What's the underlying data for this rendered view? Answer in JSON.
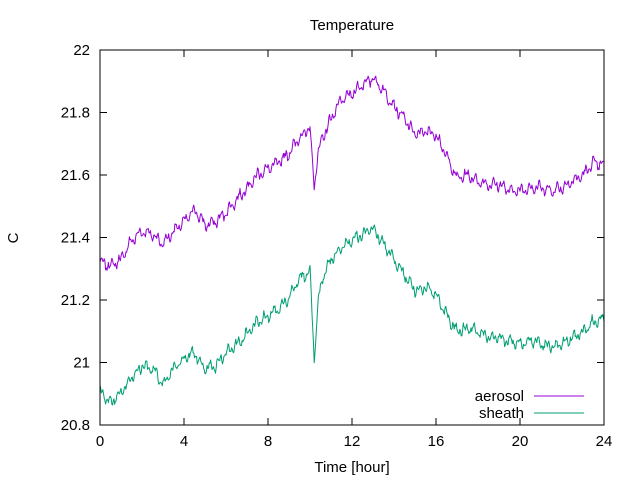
{
  "chart_data": {
    "type": "line",
    "title": "Temperature",
    "xlabel": "Time [hour]",
    "ylabel": "C",
    "xlim": [
      0,
      24
    ],
    "ylim": [
      20.8,
      22.0
    ],
    "x_ticks": [
      0,
      4,
      8,
      12,
      16,
      20,
      24
    ],
    "y_ticks": [
      20.8,
      21.0,
      21.2,
      21.4,
      21.6,
      21.8,
      22.0
    ],
    "y_tick_labels": [
      "20.8",
      "21",
      "21.2",
      "21.4",
      "21.6",
      "21.8",
      "22"
    ],
    "grid": false,
    "legend_position": "bottom-right",
    "series": [
      {
        "name": "aerosol",
        "color": "#9400d3",
        "x": [
          0,
          0.5,
          1,
          1.5,
          2,
          2.5,
          3,
          3.5,
          4,
          4.5,
          5,
          5.5,
          6,
          6.5,
          7,
          7.5,
          8,
          8.5,
          9,
          9.5,
          10,
          10.2,
          10.4,
          10.6,
          11,
          11.5,
          12,
          12.5,
          13,
          13.5,
          14,
          14.5,
          15,
          15.5,
          16,
          16.5,
          17,
          17.5,
          18,
          18.5,
          19,
          19.5,
          20,
          20.5,
          21,
          21.5,
          22,
          22.5,
          23,
          23.5,
          24
        ],
        "y": [
          21.32,
          21.31,
          21.33,
          21.39,
          21.42,
          21.41,
          21.38,
          21.42,
          21.45,
          21.49,
          21.44,
          21.45,
          21.48,
          21.52,
          21.56,
          21.6,
          21.62,
          21.64,
          21.67,
          21.72,
          21.75,
          21.56,
          21.68,
          21.72,
          21.78,
          21.84,
          21.86,
          21.89,
          21.91,
          21.87,
          21.82,
          21.78,
          21.73,
          21.74,
          21.73,
          21.66,
          21.59,
          21.6,
          21.58,
          21.57,
          21.57,
          21.55,
          21.55,
          21.56,
          21.56,
          21.55,
          21.56,
          21.58,
          21.6,
          21.64,
          21.63
        ]
      },
      {
        "name": "sheath",
        "color": "#009e73",
        "x": [
          0,
          0.5,
          1,
          1.5,
          2,
          2.5,
          3,
          3.5,
          4,
          4.5,
          5,
          5.5,
          6,
          6.5,
          7,
          7.5,
          8,
          8.5,
          9,
          9.5,
          10,
          10.2,
          10.4,
          10.6,
          11,
          11.5,
          12,
          12.5,
          13,
          13.5,
          14,
          14.5,
          15,
          15.5,
          16,
          16.5,
          17,
          17.5,
          18,
          18.5,
          19,
          19.5,
          20,
          20.5,
          21,
          21.5,
          22,
          22.5,
          23,
          23.5,
          24
        ],
        "y": [
          20.91,
          20.87,
          20.9,
          20.95,
          20.99,
          20.98,
          20.93,
          20.98,
          21.01,
          21.03,
          20.98,
          20.99,
          21.03,
          21.06,
          21.09,
          21.13,
          21.15,
          21.17,
          21.21,
          21.27,
          21.29,
          21.01,
          21.2,
          21.27,
          21.33,
          21.37,
          21.39,
          21.41,
          21.43,
          21.38,
          21.33,
          21.28,
          21.23,
          21.24,
          21.22,
          21.15,
          21.1,
          21.11,
          21.1,
          21.08,
          21.08,
          21.07,
          21.06,
          21.07,
          21.06,
          21.05,
          21.06,
          21.08,
          21.1,
          21.13,
          21.14
        ]
      }
    ]
  }
}
